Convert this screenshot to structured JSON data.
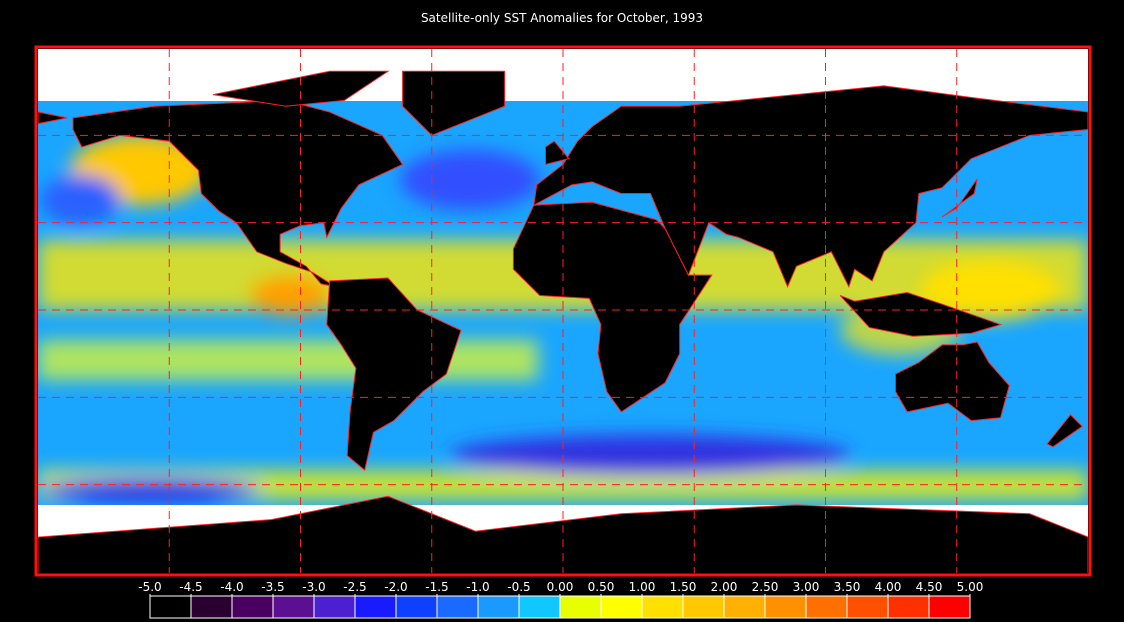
{
  "title": "Satellite-only SST Anomalies for October, 1993",
  "colorbar": {
    "ticks": [
      {
        "value": -5.0,
        "label": "-5.0"
      },
      {
        "value": -4.5,
        "label": "-4.5"
      },
      {
        "value": -4.0,
        "label": "-4.0"
      },
      {
        "value": -3.5,
        "label": "-3.5"
      },
      {
        "value": -3.0,
        "label": "-3.0"
      },
      {
        "value": -2.5,
        "label": "-2.5"
      },
      {
        "value": -2.0,
        "label": "-2.0"
      },
      {
        "value": -1.5,
        "label": "-1.5"
      },
      {
        "value": -1.0,
        "label": "-1.0"
      },
      {
        "value": -0.5,
        "label": "-0.5"
      },
      {
        "value": 0,
        "label": "0.00"
      },
      {
        "value": 0.5,
        "label": "0.50"
      },
      {
        "value": 1.0,
        "label": "1.00"
      },
      {
        "value": 1.5,
        "label": "1.50"
      },
      {
        "value": 2.0,
        "label": "2.00"
      },
      {
        "value": 2.5,
        "label": "2.50"
      },
      {
        "value": 3.0,
        "label": "3.00"
      },
      {
        "value": 3.5,
        "label": "3.50"
      },
      {
        "value": 4.0,
        "label": "4.00"
      },
      {
        "value": 4.5,
        "label": "4.50"
      },
      {
        "value": 5.0,
        "label": "5.00"
      }
    ],
    "colors": [
      "#000000",
      "#2a0030",
      "#4a0060",
      "#5a1090",
      "#4a20d0",
      "#1a1aff",
      "#1040ff",
      "#1a6aff",
      "#1a9aff",
      "#10c8ff",
      "#e8ff00",
      "#ffff00",
      "#ffe000",
      "#ffc800",
      "#ffb000",
      "#ff9000",
      "#ff7000",
      "#ff5000",
      "#ff3000",
      "#ff0000"
    ]
  }
}
